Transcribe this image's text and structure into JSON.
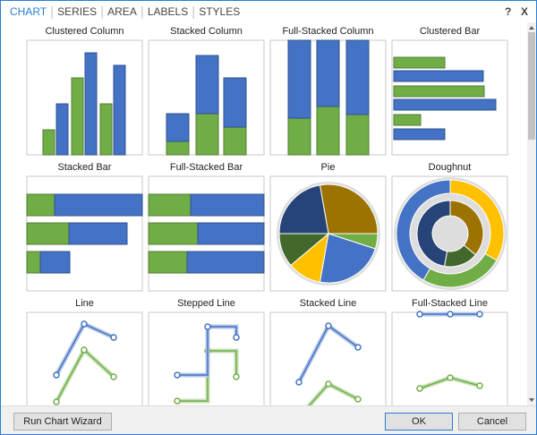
{
  "header": {
    "tabs": [
      "CHART",
      "SERIES",
      "AREA",
      "LABELS",
      "STYLES"
    ],
    "help": "?",
    "close": "X"
  },
  "tiles": [
    "Clustered Column",
    "Stacked Column",
    "Full-Stacked Column",
    "Clustered Bar",
    "Stacked Bar",
    "Full-Stacked Bar",
    "Pie",
    "Doughnut",
    "Line",
    "Stepped Line",
    "Stacked Line",
    "Full-Stacked Line"
  ],
  "buttons": {
    "wizard": "Run Chart Wizard",
    "ok": "OK",
    "cancel": "Cancel"
  }
}
